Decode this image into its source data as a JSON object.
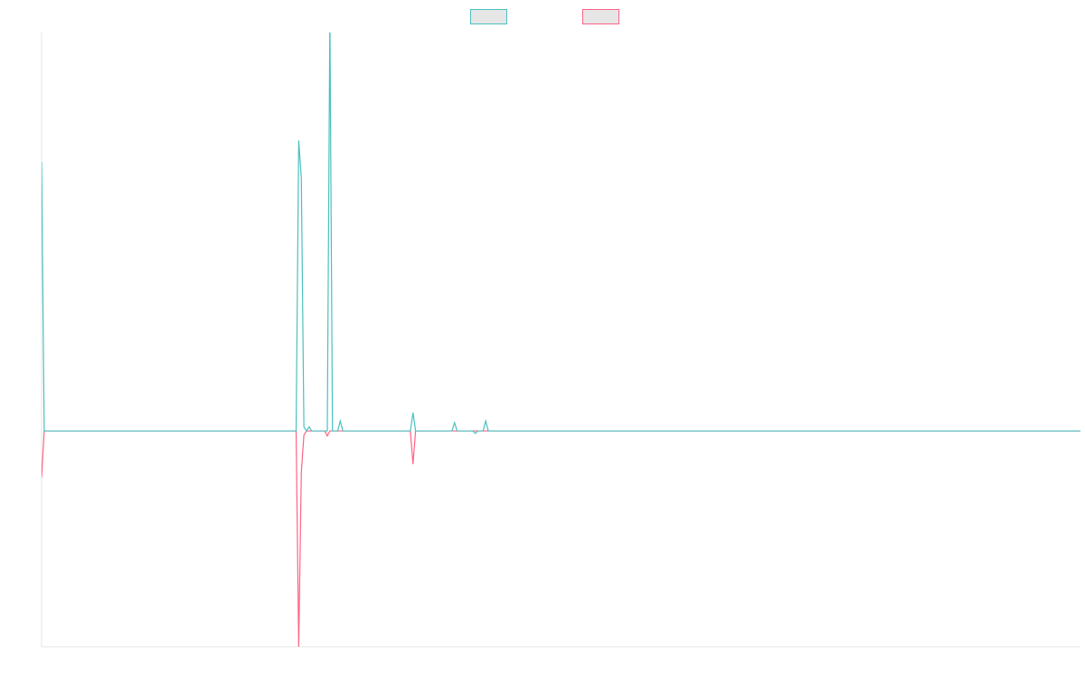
{
  "chart_data": {
    "type": "line",
    "title": "",
    "xlabel": "",
    "ylabel": "",
    "grid": false,
    "legend_position": "top-center",
    "ylim": [
      -260,
      480
    ],
    "xlim": [
      0,
      400
    ],
    "series": [
      {
        "label": "",
        "color": "#4bc0c0",
        "fill": "#e6e6e6",
        "points": [
          [
            0,
            324
          ],
          [
            1,
            0
          ],
          [
            98,
            0
          ],
          [
            99,
            350
          ],
          [
            100,
            305
          ],
          [
            101,
            5
          ],
          [
            102,
            0
          ],
          [
            103,
            5
          ],
          [
            104,
            0
          ],
          [
            110,
            0
          ],
          [
            111,
            500
          ],
          [
            112,
            0
          ],
          [
            114,
            0
          ],
          [
            115,
            12
          ],
          [
            116,
            0
          ],
          [
            142,
            0
          ],
          [
            143,
            22
          ],
          [
            144,
            0
          ],
          [
            158,
            0
          ],
          [
            159,
            10
          ],
          [
            160,
            0
          ],
          [
            166,
            0
          ],
          [
            167,
            -3
          ],
          [
            168,
            0
          ],
          [
            170,
            0
          ],
          [
            171,
            12
          ],
          [
            172,
            0
          ],
          [
            400,
            0
          ]
        ]
      },
      {
        "label": "",
        "color": "#ff6384",
        "fill": "#e6e6e6",
        "points": [
          [
            0,
            -56
          ],
          [
            1,
            0
          ],
          [
            98,
            0
          ],
          [
            99,
            -260
          ],
          [
            100,
            -50
          ],
          [
            101,
            -5
          ],
          [
            102,
            0
          ],
          [
            109,
            0
          ],
          [
            110,
            -6
          ],
          [
            111,
            0
          ],
          [
            142,
            0
          ],
          [
            143,
            -40
          ],
          [
            144,
            0
          ],
          [
            400,
            0
          ]
        ]
      }
    ]
  }
}
